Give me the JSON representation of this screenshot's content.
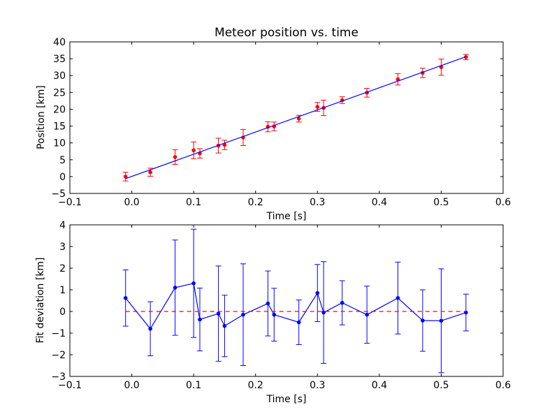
{
  "chart_data": [
    {
      "type": "scatter",
      "title": "Meteor position vs. time",
      "xlabel": "Time [s]",
      "ylabel": "Position [km]",
      "xlim": [
        -0.1,
        0.6
      ],
      "ylim": [
        -5,
        40
      ],
      "xticks": [
        "−0.1",
        "0.0",
        "0.1",
        "0.2",
        "0.3",
        "0.4",
        "0.5",
        "0.6"
      ],
      "yticks": [
        "−5",
        "0",
        "5",
        "10",
        "15",
        "20",
        "25",
        "30",
        "35",
        "40"
      ],
      "xtick_values": [
        -0.1,
        0,
        0.1,
        0.2,
        0.3,
        0.4,
        0.5,
        0.6
      ],
      "ytick_values": [
        -5,
        0,
        5,
        10,
        15,
        20,
        25,
        30,
        35,
        40
      ],
      "grid": false,
      "series": [
        {
          "kind": "errorbar",
          "color": "#ff0000",
          "x": [
            -0.01,
            0.03,
            0.07,
            0.1,
            0.11,
            0.14,
            0.15,
            0.18,
            0.22,
            0.23,
            0.27,
            0.3,
            0.31,
            0.34,
            0.38,
            0.43,
            0.47,
            0.5,
            0.54
          ],
          "y": [
            0.0,
            1.3,
            5.8,
            7.8,
            6.9,
            9.2,
            9.4,
            11.6,
            14.8,
            14.9,
            17.2,
            20.7,
            20.4,
            22.7,
            24.9,
            28.9,
            30.8,
            32.5,
            35.5
          ],
          "yerr": [
            1.3,
            1.2,
            2.2,
            2.5,
            1.4,
            2.2,
            1.4,
            2.4,
            1.5,
            1.3,
            1.0,
            1.3,
            2.3,
            1.0,
            1.3,
            1.7,
            1.4,
            2.4,
            0.8
          ]
        },
        {
          "kind": "line",
          "color": "#0000ff",
          "x": [
            -0.01,
            0.54
          ],
          "y": [
            -0.6,
            35.6
          ]
        }
      ]
    },
    {
      "type": "scatter",
      "title": "",
      "xlabel": "Time [s]",
      "ylabel": "Fit deviation [km]",
      "xlim": [
        -0.1,
        0.6
      ],
      "ylim": [
        -3,
        4
      ],
      "xticks": [
        "−0.1",
        "0.0",
        "0.1",
        "0.2",
        "0.3",
        "0.4",
        "0.5",
        "0.6"
      ],
      "yticks": [
        "−3",
        "−2",
        "−1",
        "0",
        "1",
        "2",
        "3",
        "4"
      ],
      "xtick_values": [
        -0.1,
        0,
        0.1,
        0.2,
        0.3,
        0.4,
        0.5,
        0.6
      ],
      "ytick_values": [
        -3,
        -2,
        -1,
        0,
        1,
        2,
        3,
        4
      ],
      "grid": false,
      "series": [
        {
          "kind": "errorbar-line",
          "color": "#0000ff",
          "x": [
            -0.01,
            0.03,
            0.07,
            0.1,
            0.11,
            0.14,
            0.15,
            0.18,
            0.22,
            0.23,
            0.27,
            0.3,
            0.31,
            0.34,
            0.38,
            0.43,
            0.47,
            0.5,
            0.54
          ],
          "y": [
            0.62,
            -0.8,
            1.1,
            1.3,
            -0.37,
            -0.1,
            -0.67,
            -0.15,
            0.37,
            -0.15,
            -0.5,
            0.85,
            -0.05,
            0.4,
            -0.15,
            0.62,
            -0.42,
            -0.43,
            -0.05
          ],
          "yerr": [
            1.3,
            1.25,
            2.2,
            2.5,
            1.45,
            2.2,
            1.42,
            2.35,
            1.5,
            1.22,
            1.03,
            1.32,
            2.35,
            1.02,
            1.32,
            1.66,
            1.42,
            2.4,
            0.85
          ]
        },
        {
          "kind": "hline",
          "color": "#ff0000",
          "style": "dashed",
          "x": [
            -0.01,
            0.54
          ],
          "y": [
            0,
            0
          ]
        }
      ]
    }
  ]
}
